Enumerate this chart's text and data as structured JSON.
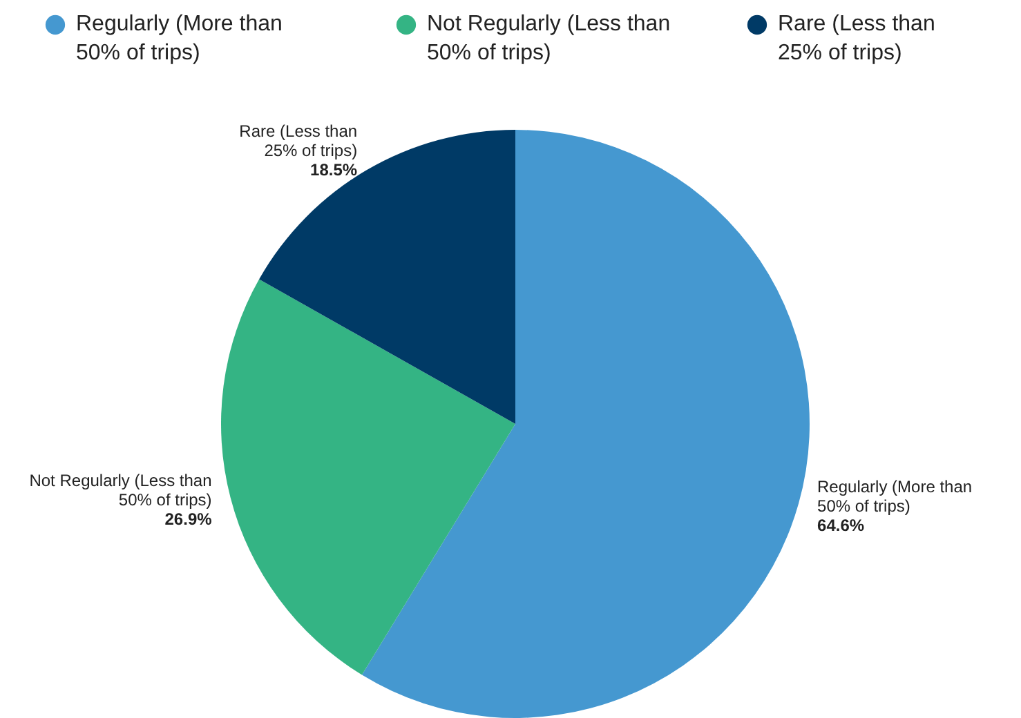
{
  "chart_data": {
    "type": "pie",
    "categories": [
      "Regularly (More than 50% of trips)",
      "Not Regularly (Less than 50% of trips)",
      "Rare (Less than 25% of trips)"
    ],
    "values": [
      64.6,
      26.9,
      18.5
    ],
    "colors": [
      "#4598d0",
      "#34b484",
      "#003a66"
    ],
    "value_labels": [
      "64.6%",
      "26.9%",
      "18.5%"
    ],
    "legend": "top"
  }
}
